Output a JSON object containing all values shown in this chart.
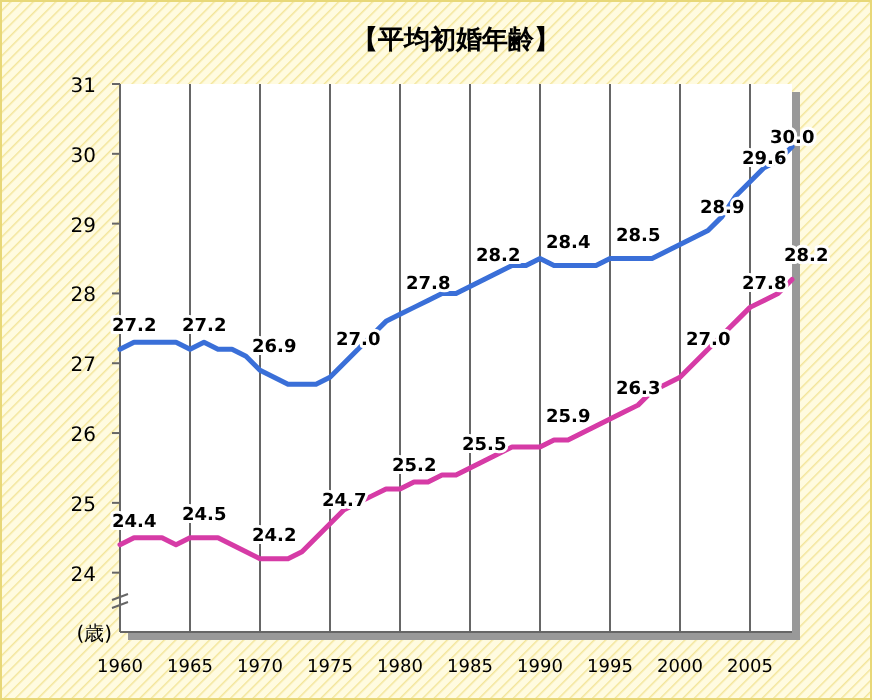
{
  "chart_data": {
    "type": "line",
    "title": "【平均初婚年齢】",
    "ylabel": "(歳)",
    "series": [
      {
        "color": "#3a6fd8",
        "x": [
          1960,
          1961,
          1962,
          1963,
          1964,
          1965,
          1966,
          1967,
          1968,
          1969,
          1970,
          1971,
          1972,
          1973,
          1974,
          1975,
          1976,
          1977,
          1978,
          1979,
          1980,
          1981,
          1982,
          1983,
          1984,
          1985,
          1986,
          1987,
          1988,
          1989,
          1990,
          1991,
          1992,
          1993,
          1994,
          1995,
          1996,
          1997,
          1998,
          1999,
          2000,
          2001,
          2002,
          2003,
          2004,
          2005,
          2006,
          2007,
          2008
        ],
        "values": [
          27.2,
          27.3,
          27.3,
          27.3,
          27.3,
          27.2,
          27.3,
          27.2,
          27.2,
          27.1,
          26.9,
          26.8,
          26.7,
          26.7,
          26.7,
          26.8,
          27.0,
          27.2,
          27.4,
          27.6,
          27.7,
          27.8,
          27.9,
          28.0,
          28.0,
          28.1,
          28.2,
          28.3,
          28.4,
          28.4,
          28.5,
          28.4,
          28.4,
          28.4,
          28.4,
          28.5,
          28.5,
          28.5,
          28.5,
          28.6,
          28.7,
          28.8,
          28.9,
          29.1,
          29.4,
          29.6,
          29.8,
          29.9,
          30.1
        ]
      },
      {
        "color": "#d63ba6",
        "x": [
          1960,
          1961,
          1962,
          1963,
          1964,
          1965,
          1966,
          1967,
          1968,
          1969,
          1970,
          1971,
          1972,
          1973,
          1974,
          1975,
          1976,
          1977,
          1978,
          1979,
          1980,
          1981,
          1982,
          1983,
          1984,
          1985,
          1986,
          1987,
          1988,
          1989,
          1990,
          1991,
          1992,
          1993,
          1994,
          1995,
          1996,
          1997,
          1998,
          1999,
          2000,
          2001,
          2002,
          2003,
          2004,
          2005,
          2006,
          2007,
          2008
        ],
        "values": [
          24.4,
          24.5,
          24.5,
          24.5,
          24.4,
          24.5,
          24.5,
          24.5,
          24.4,
          24.3,
          24.2,
          24.2,
          24.2,
          24.3,
          24.5,
          24.7,
          24.9,
          25.0,
          25.1,
          25.2,
          25.2,
          25.3,
          25.3,
          25.4,
          25.4,
          25.5,
          25.6,
          25.7,
          25.8,
          25.8,
          25.8,
          25.9,
          25.9,
          26.0,
          26.1,
          26.2,
          26.3,
          26.4,
          26.6,
          26.7,
          26.8,
          27.0,
          27.2,
          27.4,
          27.6,
          27.8,
          27.9,
          28.0,
          28.2
        ]
      }
    ],
    "xlim": [
      1960,
      2008
    ],
    "xticks": [
      1960,
      1965,
      1970,
      1975,
      1980,
      1985,
      1990,
      1995,
      2000,
      2005
    ],
    "ylim": [
      23.15,
      31
    ],
    "yticks": [
      24,
      25,
      26,
      27,
      28,
      29,
      30,
      31
    ],
    "grid": "x",
    "marker": "none",
    "line_style": "solid",
    "annotations": [
      {
        "text": "27.2",
        "x": 1960,
        "y": 27.2
      },
      {
        "text": "27.2",
        "x": 1965,
        "y": 27.2
      },
      {
        "text": "26.9",
        "x": 1970,
        "y": 26.9
      },
      {
        "text": "27.0",
        "x": 1976,
        "y": 27.0
      },
      {
        "text": "27.8",
        "x": 1981,
        "y": 27.8
      },
      {
        "text": "28.2",
        "x": 1986,
        "y": 28.2
      },
      {
        "text": "28.4",
        "x": 1991,
        "y": 28.4
      },
      {
        "text": "28.5",
        "x": 1996,
        "y": 28.5
      },
      {
        "text": "28.9",
        "x": 2002,
        "y": 28.9
      },
      {
        "text": "29.6",
        "x": 2005,
        "y": 29.6
      },
      {
        "text": "30.0",
        "x": 2007,
        "y": 29.9
      },
      {
        "text": "24.4",
        "x": 1960,
        "y": 24.4
      },
      {
        "text": "24.5",
        "x": 1965,
        "y": 24.5
      },
      {
        "text": "24.2",
        "x": 1970,
        "y": 24.2
      },
      {
        "text": "24.7",
        "x": 1975,
        "y": 24.7
      },
      {
        "text": "25.2",
        "x": 1980,
        "y": 25.2
      },
      {
        "text": "25.5",
        "x": 1985,
        "y": 25.5
      },
      {
        "text": "25.9",
        "x": 1991,
        "y": 25.9
      },
      {
        "text": "26.3",
        "x": 1996,
        "y": 26.3
      },
      {
        "text": "27.0",
        "x": 2001,
        "y": 27.0
      },
      {
        "text": "27.8",
        "x": 2005,
        "y": 27.8
      },
      {
        "text": "28.2",
        "x": 2008,
        "y": 28.2
      }
    ]
  }
}
